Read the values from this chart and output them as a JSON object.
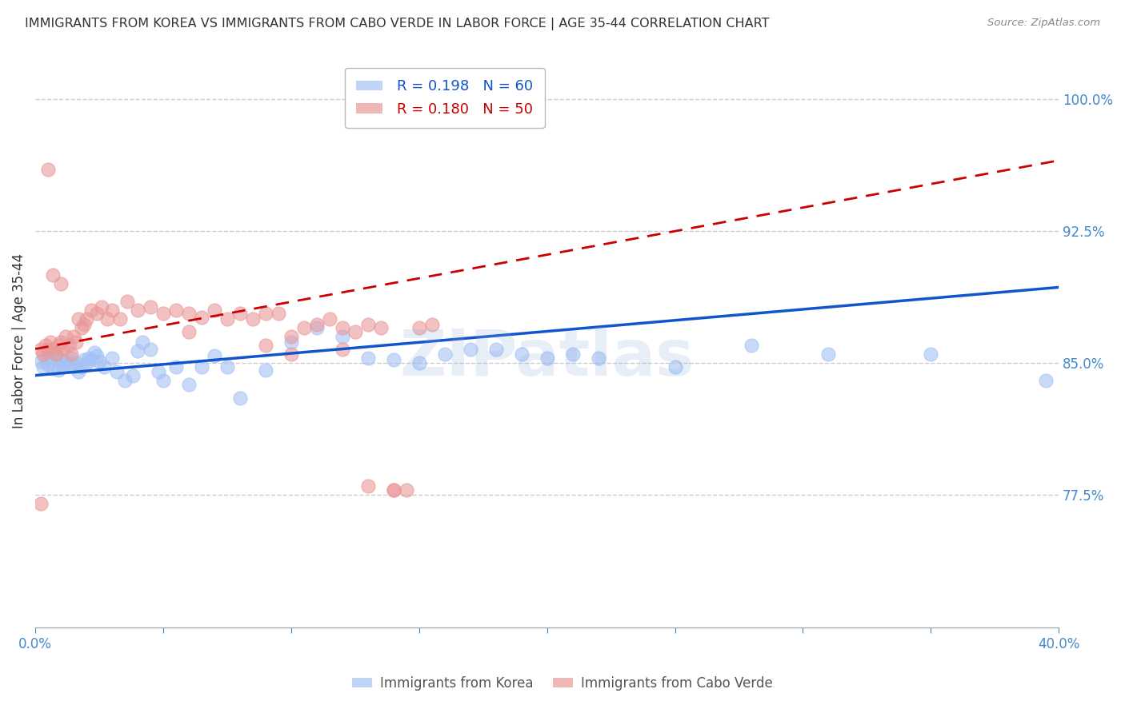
{
  "title": "IMMIGRANTS FROM KOREA VS IMMIGRANTS FROM CABO VERDE IN LABOR FORCE | AGE 35-44 CORRELATION CHART",
  "source": "Source: ZipAtlas.com",
  "ylabel": "In Labor Force | Age 35-44",
  "watermark": "ZIPatlas",
  "xlim": [
    0.0,
    0.4
  ],
  "ylim": [
    0.7,
    1.025
  ],
  "xticks": [
    0.0,
    0.05,
    0.1,
    0.15,
    0.2,
    0.25,
    0.3,
    0.35,
    0.4
  ],
  "xticklabels": [
    "0.0%",
    "",
    "",
    "",
    "",
    "",
    "",
    "",
    "40.0%"
  ],
  "yticks": [
    0.775,
    0.85,
    0.925,
    1.0
  ],
  "yticklabels": [
    "77.5%",
    "85.0%",
    "92.5%",
    "100.0%"
  ],
  "legend_korea": "R = 0.198   N = 60",
  "legend_verde": "R = 0.180   N = 50",
  "korea_color": "#a4c2f4",
  "verde_color": "#ea9999",
  "korea_line_color": "#1155cc",
  "verde_line_color": "#cc0000",
  "grid_color": "#cccccc",
  "axis_color": "#4488cc",
  "korea_scatter_x": [
    0.002,
    0.003,
    0.004,
    0.005,
    0.006,
    0.007,
    0.008,
    0.009,
    0.01,
    0.01,
    0.011,
    0.012,
    0.013,
    0.014,
    0.015,
    0.016,
    0.017,
    0.018,
    0.019,
    0.02,
    0.021,
    0.022,
    0.023,
    0.024,
    0.025,
    0.027,
    0.03,
    0.032,
    0.035,
    0.038,
    0.04,
    0.042,
    0.045,
    0.048,
    0.05,
    0.055,
    0.06,
    0.065,
    0.07,
    0.075,
    0.08,
    0.09,
    0.1,
    0.11,
    0.12,
    0.13,
    0.14,
    0.15,
    0.16,
    0.17,
    0.18,
    0.19,
    0.2,
    0.21,
    0.22,
    0.25,
    0.28,
    0.31,
    0.35,
    0.395
  ],
  "korea_scatter_y": [
    0.851,
    0.848,
    0.853,
    0.849,
    0.852,
    0.847,
    0.855,
    0.846,
    0.85,
    0.852,
    0.848,
    0.851,
    0.849,
    0.853,
    0.848,
    0.85,
    0.845,
    0.848,
    0.852,
    0.85,
    0.853,
    0.852,
    0.856,
    0.854,
    0.851,
    0.848,
    0.853,
    0.845,
    0.84,
    0.843,
    0.857,
    0.862,
    0.858,
    0.845,
    0.84,
    0.848,
    0.838,
    0.848,
    0.854,
    0.848,
    0.83,
    0.846,
    0.862,
    0.87,
    0.865,
    0.853,
    0.852,
    0.85,
    0.855,
    0.858,
    0.858,
    0.855,
    0.853,
    0.855,
    0.853,
    0.848,
    0.86,
    0.855,
    0.855,
    0.84
  ],
  "verde_scatter_x": [
    0.002,
    0.003,
    0.004,
    0.005,
    0.006,
    0.007,
    0.008,
    0.009,
    0.01,
    0.011,
    0.012,
    0.013,
    0.014,
    0.015,
    0.016,
    0.017,
    0.018,
    0.019,
    0.02,
    0.022,
    0.024,
    0.026,
    0.028,
    0.03,
    0.033,
    0.036,
    0.04,
    0.045,
    0.05,
    0.055,
    0.06,
    0.065,
    0.07,
    0.075,
    0.08,
    0.085,
    0.09,
    0.095,
    0.1,
    0.105,
    0.11,
    0.115,
    0.12,
    0.125,
    0.13,
    0.135,
    0.14,
    0.145,
    0.15,
    0.155
  ],
  "verde_scatter_y": [
    0.858,
    0.855,
    0.86,
    0.858,
    0.862,
    0.858,
    0.855,
    0.86,
    0.862,
    0.858,
    0.865,
    0.86,
    0.855,
    0.865,
    0.862,
    0.875,
    0.87,
    0.872,
    0.875,
    0.88,
    0.878,
    0.882,
    0.875,
    0.88,
    0.875,
    0.885,
    0.88,
    0.882,
    0.878,
    0.88,
    0.878,
    0.876,
    0.88,
    0.875,
    0.878,
    0.875,
    0.878,
    0.878,
    0.865,
    0.87,
    0.872,
    0.875,
    0.87,
    0.868,
    0.872,
    0.87,
    0.778,
    0.778,
    0.87,
    0.872
  ],
  "verde_extra_x": [
    0.002,
    0.005,
    0.007,
    0.01,
    0.06,
    0.09,
    0.1,
    0.12,
    0.13,
    0.14
  ],
  "verde_extra_y": [
    0.77,
    0.96,
    0.9,
    0.895,
    0.868,
    0.86,
    0.855,
    0.858,
    0.78,
    0.778
  ]
}
